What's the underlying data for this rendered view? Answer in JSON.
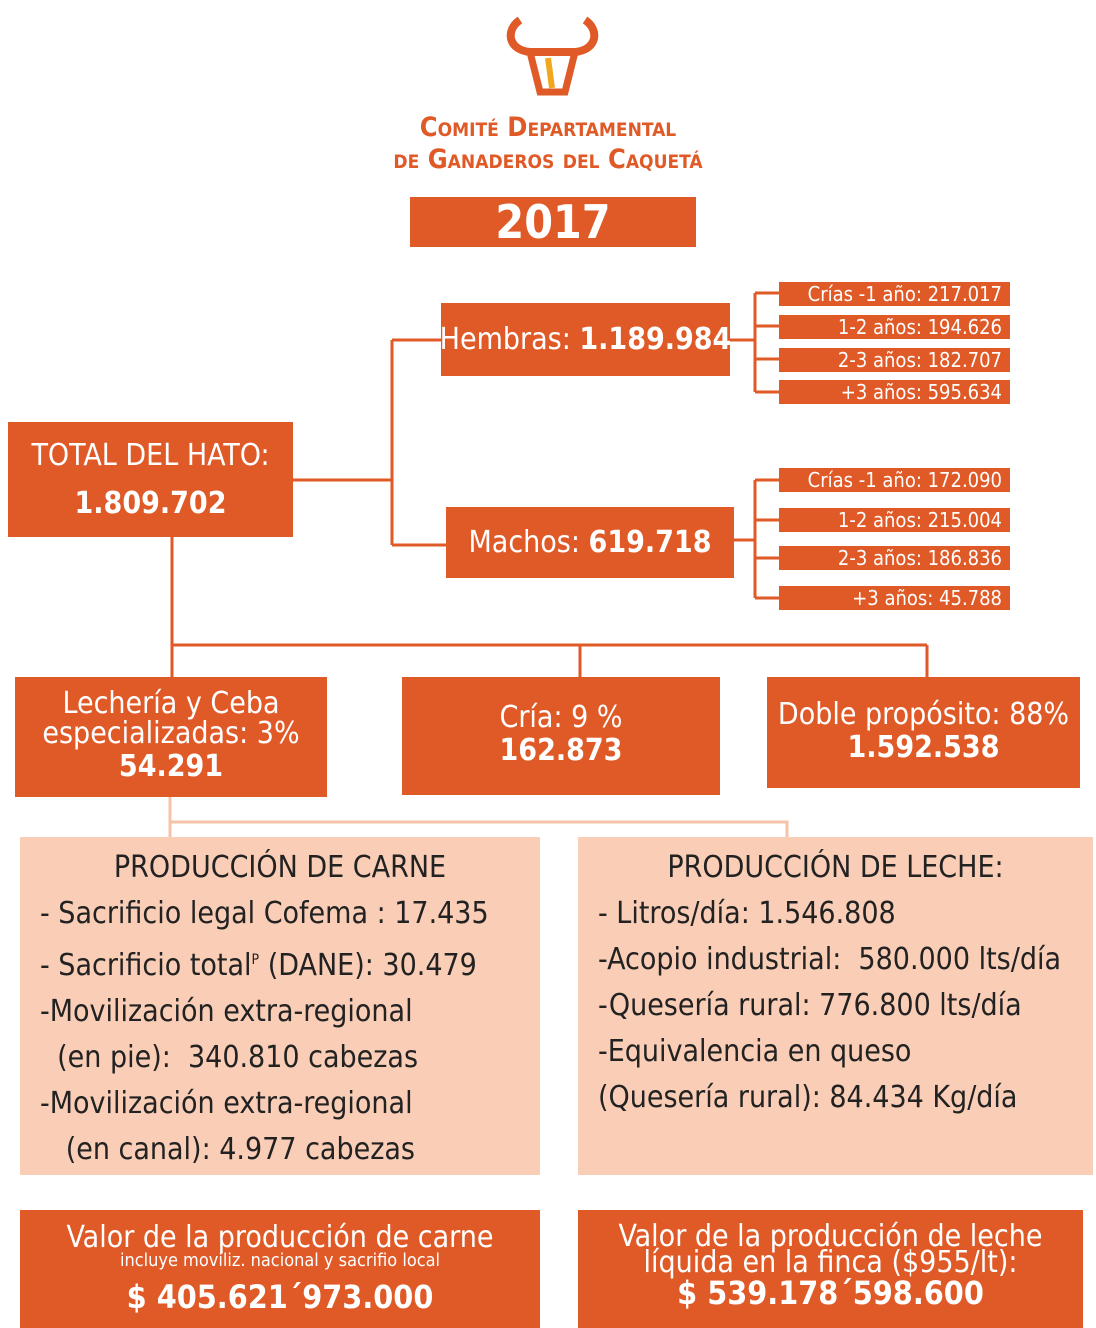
{
  "header": {
    "org_line1": "Comité Departamental",
    "org_line2": "de Ganaderos del Caquetá",
    "year": "2017"
  },
  "total": {
    "label": "TOTAL DEL HATO:",
    "value": "1.809.702"
  },
  "hembras": {
    "label": "Hembras:",
    "value": "1.189.984",
    "groups": [
      {
        "label": "Crías -1 año:",
        "value": "217.017"
      },
      {
        "label": "1-2 años:",
        "value": "194.626"
      },
      {
        "label": "2-3 años:",
        "value": "182.707"
      },
      {
        "label": "+3 años:",
        "value": "595.634"
      }
    ]
  },
  "machos": {
    "label": "Machos:",
    "value": "619.718",
    "groups": [
      {
        "label": "Crías -1 año:",
        "value": "172.090"
      },
      {
        "label": "1-2 años:",
        "value": "215.004"
      },
      {
        "label": "2-3 años:",
        "value": "186.836"
      },
      {
        "label": "+3 años:",
        "value": "45.788"
      }
    ]
  },
  "systems": [
    {
      "lines": [
        "Lechería y Ceba",
        "especializadas: 3%"
      ],
      "value": "54.291"
    },
    {
      "lines": [
        "Cría: 9 %"
      ],
      "value": "162.873"
    },
    {
      "lines": [
        "Doble propósito: 88%"
      ],
      "value": "1.592.538"
    }
  ],
  "carne": {
    "title": "PRODUCCIÓN DE CARNE",
    "items": [
      {
        "text": "- Sacrificio legal Cofema : 17.435"
      },
      {
        "text": "- Sacrificio total",
        "sup": "P",
        "rest": " (DANE): 30.479"
      },
      {
        "text": "-Movilización extra-regional"
      },
      {
        "text": "  (en pie):  340.810 cabezas"
      },
      {
        "text": "-Movilización extra-regional"
      },
      {
        "text": "   (en canal): 4.977 cabezas"
      }
    ]
  },
  "leche": {
    "title": "PRODUCCIÓN DE LECHE:",
    "items": [
      {
        "text": "- Litros/día: 1.546.808"
      },
      {
        "text": "-Acopio industrial:  580.000 lts/día"
      },
      {
        "text": "-Quesería rural: 776.800 lts/día"
      },
      {
        "text": "-Equivalencia en queso"
      },
      {
        "text": "(Quesería rural): 84.434 Kg/día"
      }
    ]
  },
  "valor_carne": {
    "title": "Valor de la producción de carne",
    "note": "incluye moviliz. nacional y sacrifio local",
    "value": "$ 405.621´973.000"
  },
  "valor_leche": {
    "lines": [
      "Valor de la producción de leche",
      "líquida en la finca ($955/lt):"
    ],
    "value": "$ 539.178´598.600"
  }
}
